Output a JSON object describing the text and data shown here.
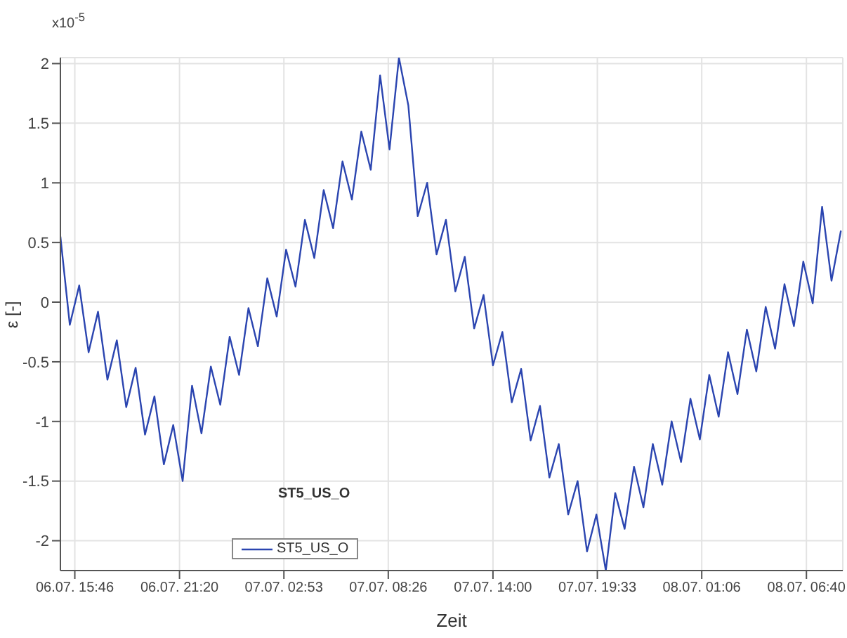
{
  "chart_data": {
    "type": "line",
    "xlabel": "Zeit",
    "ylabel": "ε [-]",
    "annotations": [
      "x10$^{-5}$",
      "ST5_US_O"
    ],
    "x": [
      "--07-06T15:00",
      "--07-06T15:30",
      "--07-06T16:00",
      "--07-06T16:30",
      "--07-06T17:00",
      "--07-06T17:30",
      "--07-06T18:00",
      "--07-06T18:30",
      "--07-06T19:00",
      "--07-06T19:30",
      "--07-06T20:00",
      "--07-06T20:30",
      "--07-06T21:00",
      "--07-06T21:30",
      "--07-06T22:00",
      "--07-06T22:30",
      "--07-06T23:00",
      "--07-06T23:30",
      "--07-07T00:00",
      "--07-07T00:30",
      "--07-07T01:00",
      "--07-07T01:30",
      "--07-07T02:00",
      "--07-07T02:30",
      "--07-07T03:00",
      "--07-07T03:30",
      "--07-07T04:00",
      "--07-07T04:30",
      "--07-07T05:00",
      "--07-07T05:30",
      "--07-07T06:00",
      "--07-07T06:30",
      "--07-07T07:00",
      "--07-07T07:30",
      "--07-07T08:00",
      "--07-07T08:30",
      "--07-07T09:00",
      "--07-07T09:30",
      "--07-07T10:00",
      "--07-07T10:30",
      "--07-07T11:00",
      "--07-07T11:30",
      "--07-07T12:00",
      "--07-07T12:30",
      "--07-07T13:00",
      "--07-07T13:30",
      "--07-07T14:00",
      "--07-07T14:30",
      "--07-07T15:00",
      "--07-07T15:30",
      "--07-07T16:00",
      "--07-07T16:30",
      "--07-07T17:00",
      "--07-07T17:30",
      "--07-07T18:00",
      "--07-07T18:30",
      "--07-07T19:00",
      "--07-07T19:30",
      "--07-07T20:00",
      "--07-07T20:30",
      "--07-07T21:00",
      "--07-07T21:30",
      "--07-07T22:00",
      "--07-07T22:30",
      "--07-07T23:00",
      "--07-07T23:30",
      "--07-08T00:00",
      "--07-08T00:30",
      "--07-08T01:00",
      "--07-08T01:30",
      "--07-08T02:00",
      "--07-08T02:30",
      "--07-08T03:00",
      "--07-08T03:30",
      "--07-08T04:00",
      "--07-08T04:30",
      "--07-08T05:00",
      "--07-08T05:30",
      "--07-08T06:00",
      "--07-08T06:30",
      "--07-08T07:00",
      "--07-08T07:30",
      "--07-08T08:00",
      "--07-08T08:30"
    ],
    "series": [
      {
        "name": "ST5_US_O",
        "color": "#2b45b0",
        "values": [
          0.55,
          -0.19,
          0.14,
          -0.42,
          -0.08,
          -0.65,
          -0.32,
          -0.88,
          -0.55,
          -1.11,
          -0.79,
          -1.36,
          -1.03,
          -1.5,
          -0.7,
          -1.1,
          -0.54,
          -0.86,
          -0.29,
          -0.61,
          -0.05,
          -0.37,
          0.2,
          -0.12,
          0.44,
          0.13,
          0.69,
          0.37,
          0.94,
          0.62,
          1.18,
          0.86,
          1.43,
          1.11,
          1.9,
          1.28,
          2.05,
          1.65,
          0.72,
          1.0,
          0.4,
          0.69,
          0.09,
          0.38,
          -0.22,
          0.06,
          -0.53,
          -0.25,
          -0.84,
          -0.56,
          -1.16,
          -0.87,
          -1.47,
          -1.19,
          -1.78,
          -1.5,
          -2.09,
          -1.78,
          -2.25,
          -1.6,
          -1.9,
          -1.38,
          -1.72,
          -1.19,
          -1.53,
          -1.0,
          -1.34,
          -0.81,
          -1.15,
          -0.61,
          -0.96,
          -0.42,
          -0.77,
          -0.23,
          -0.58,
          -0.04,
          -0.39,
          0.15,
          -0.2,
          0.34,
          -0.01,
          0.8,
          0.18,
          0.6
        ]
      }
    ],
    "xlim": [
      "--07-06T15:00",
      "--07-08T08:36"
    ],
    "xticks": [
      {
        "value": "--07-06T15:46",
        "label": "06.07. 15:46"
      },
      {
        "value": "--07-06T21:20",
        "label": "06.07. 21:20"
      },
      {
        "value": "--07-07T02:53",
        "label": "07.07. 02:53"
      },
      {
        "value": "--07-07T08:26",
        "label": "07.07. 08:26"
      },
      {
        "value": "--07-07T14:00",
        "label": "07.07. 14:00"
      },
      {
        "value": "--07-07T19:33",
        "label": "07.07. 19:33"
      },
      {
        "value": "--07-08T01:06",
        "label": "08.07. 01:06"
      },
      {
        "value": "--07-08T06:40",
        "label": "08.07. 06:40"
      }
    ],
    "ylim": [
      -2.25,
      2.05
    ],
    "yticks": [
      -2,
      -1.5,
      -1,
      -0.5,
      0,
      0.5,
      1,
      1.5,
      2
    ],
    "grid": true,
    "legend": "bottom left",
    "marker": "none",
    "line_style": "solid"
  }
}
